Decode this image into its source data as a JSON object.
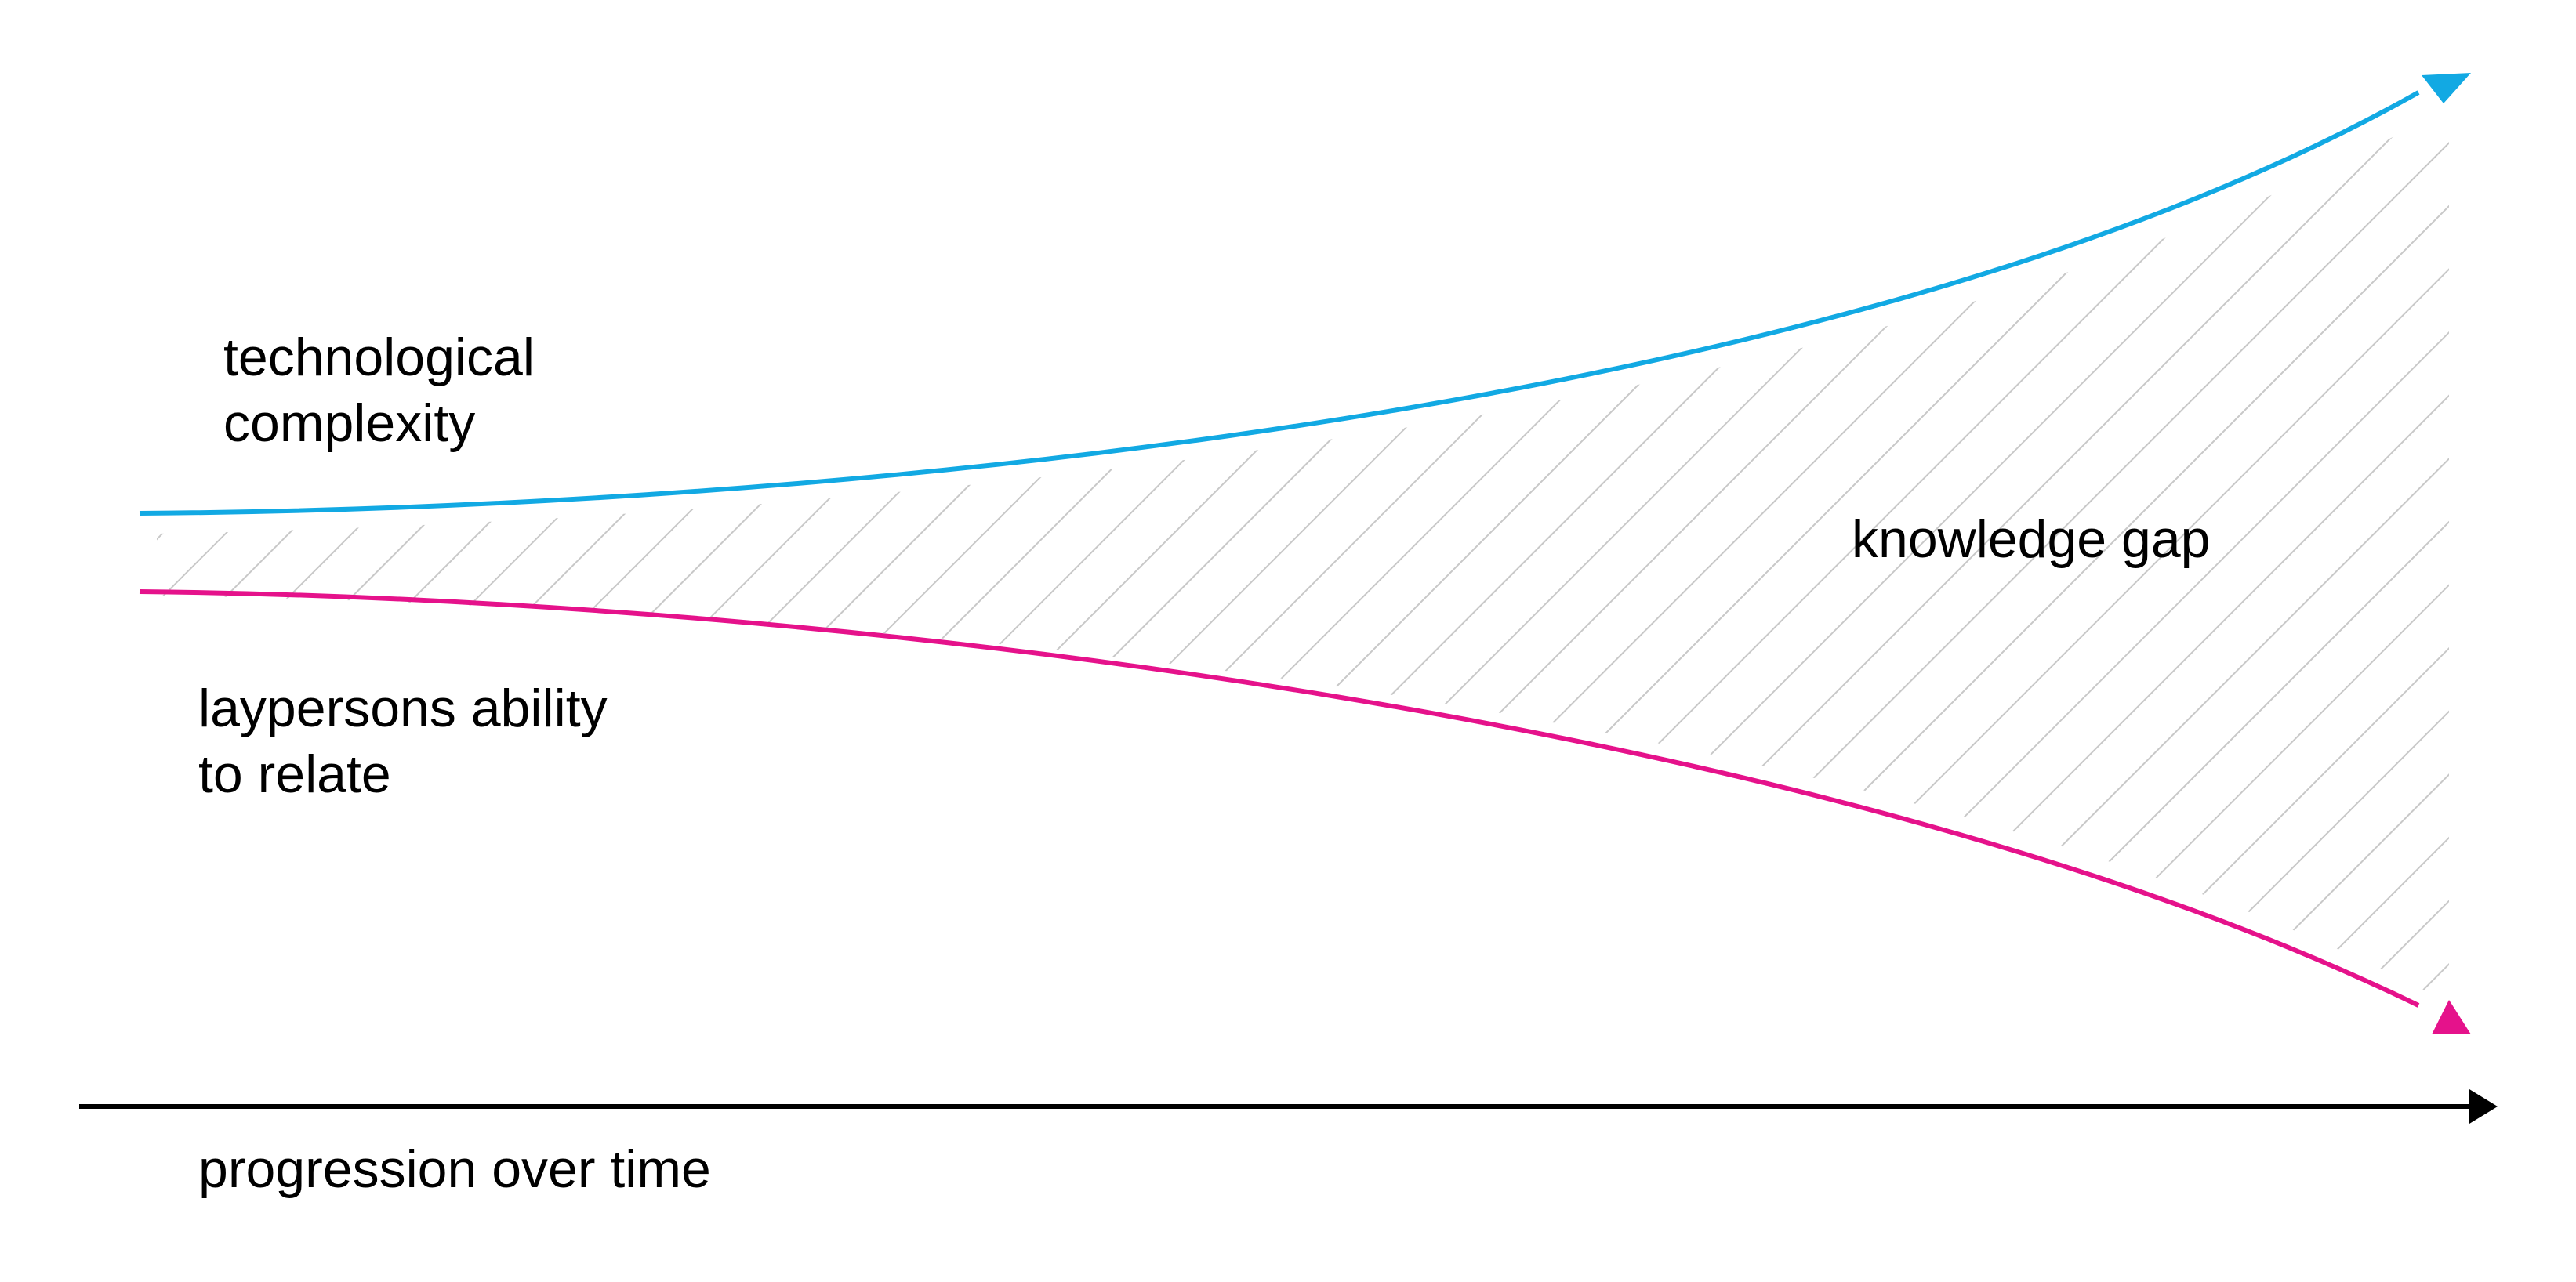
{
  "labels": {
    "technological_complexity": [
      "technological",
      "complexity"
    ],
    "laypersons_ability": [
      "laypersons ability",
      "to relate"
    ],
    "knowledge_gap": "knowledge gap",
    "time_axis": "progression over time"
  },
  "colors": {
    "technological_complexity": "#12a9e3",
    "laypersons_ability": "#e5128b",
    "hatch": "#c8c8c8",
    "axis": "#000000",
    "text": "#000000"
  }
}
